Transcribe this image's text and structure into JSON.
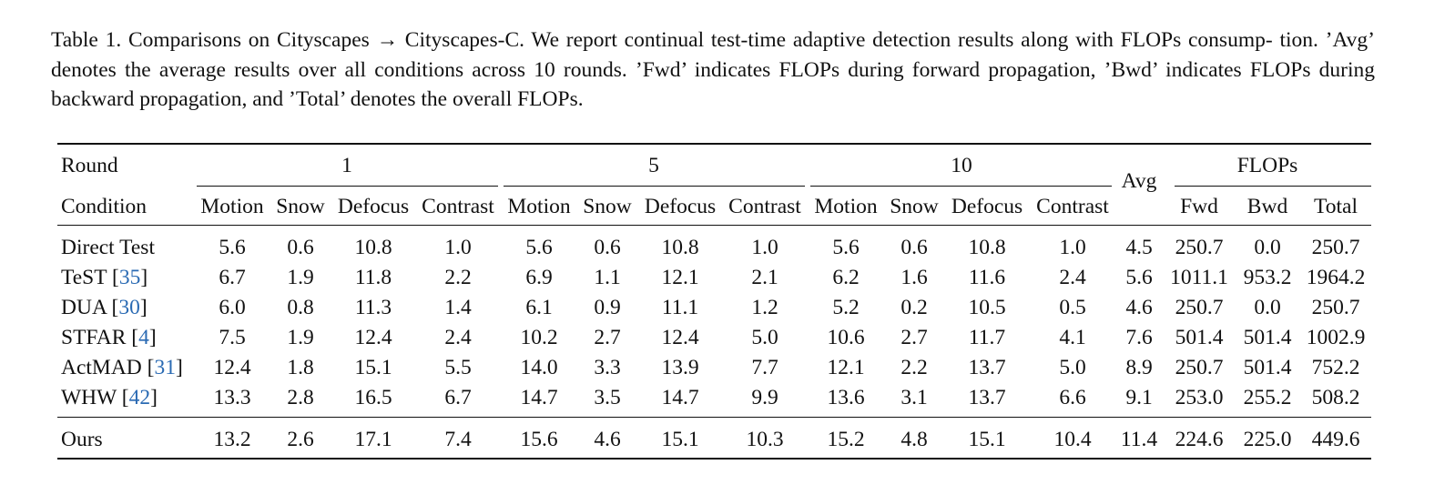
{
  "caption": {
    "line1": "Table 1. Comparisons on Cityscapes → Cityscapes-C. We report continual test-time adaptive detection results along with FLOPs consump-",
    "line2": "tion. ’Avg’ denotes the average results over all conditions across 10 rounds. ’Fwd’ indicates FLOPs during forward propagation, ’Bwd’",
    "line3": "indicates FLOPs during backward propagation, and ’Total’ denotes the overall FLOPs."
  },
  "header": {
    "round_label": "Round",
    "condition_label": "Condition",
    "rounds": [
      "1",
      "5",
      "10"
    ],
    "avg_label": "Avg",
    "flops_label": "FLOPs",
    "conditions": [
      "Motion",
      "Snow",
      "Defocus",
      "Contrast",
      "Motion",
      "Snow",
      "Defocus",
      "Contrast",
      "Motion",
      "Snow",
      "Defocus",
      "Contrast"
    ],
    "flops_cols": [
      "Fwd",
      "Bwd",
      "Total"
    ]
  },
  "rows": [
    {
      "method": "Direct Test",
      "ref": "",
      "values": [
        "5.6",
        "0.6",
        "10.8",
        "1.0",
        "5.6",
        "0.6",
        "10.8",
        "1.0",
        "5.6",
        "0.6",
        "10.8",
        "1.0",
        "4.5",
        "250.7",
        "0.0",
        "250.7"
      ]
    },
    {
      "method": "TeST",
      "ref": "35",
      "values": [
        "6.7",
        "1.9",
        "11.8",
        "2.2",
        "6.9",
        "1.1",
        "12.1",
        "2.1",
        "6.2",
        "1.6",
        "11.6",
        "2.4",
        "5.6",
        "1011.1",
        "953.2",
        "1964.2"
      ]
    },
    {
      "method": "DUA",
      "ref": "30",
      "values": [
        "6.0",
        "0.8",
        "11.3",
        "1.4",
        "6.1",
        "0.9",
        "11.1",
        "1.2",
        "5.2",
        "0.2",
        "10.5",
        "0.5",
        "4.6",
        "250.7",
        "0.0",
        "250.7"
      ]
    },
    {
      "method": "STFAR",
      "ref": "4",
      "values": [
        "7.5",
        "1.9",
        "12.4",
        "2.4",
        "10.2",
        "2.7",
        "12.4",
        "5.0",
        "10.6",
        "2.7",
        "11.7",
        "4.1",
        "7.6",
        "501.4",
        "501.4",
        "1002.9"
      ]
    },
    {
      "method": "ActMAD",
      "ref": "31",
      "values": [
        "12.4",
        "1.8",
        "15.1",
        "5.5",
        "14.0",
        "3.3",
        "13.9",
        "7.7",
        "12.1",
        "2.2",
        "13.7",
        "5.0",
        "8.9",
        "250.7",
        "501.4",
        "752.2"
      ]
    },
    {
      "method": "WHW",
      "ref": "42",
      "values": [
        "13.3",
        "2.8",
        "16.5",
        "6.7",
        "14.7",
        "3.5",
        "14.7",
        "9.9",
        "13.6",
        "3.1",
        "13.7",
        "6.6",
        "9.1",
        "253.0",
        "255.2",
        "508.2"
      ]
    },
    {
      "method": "Ours",
      "ref": "",
      "values": [
        "13.2",
        "2.6",
        "17.1",
        "7.4",
        "15.6",
        "4.6",
        "15.1",
        "10.3",
        "15.2",
        "4.8",
        "15.1",
        "10.4",
        "11.4",
        "224.6",
        "225.0",
        "449.6"
      ]
    }
  ]
}
